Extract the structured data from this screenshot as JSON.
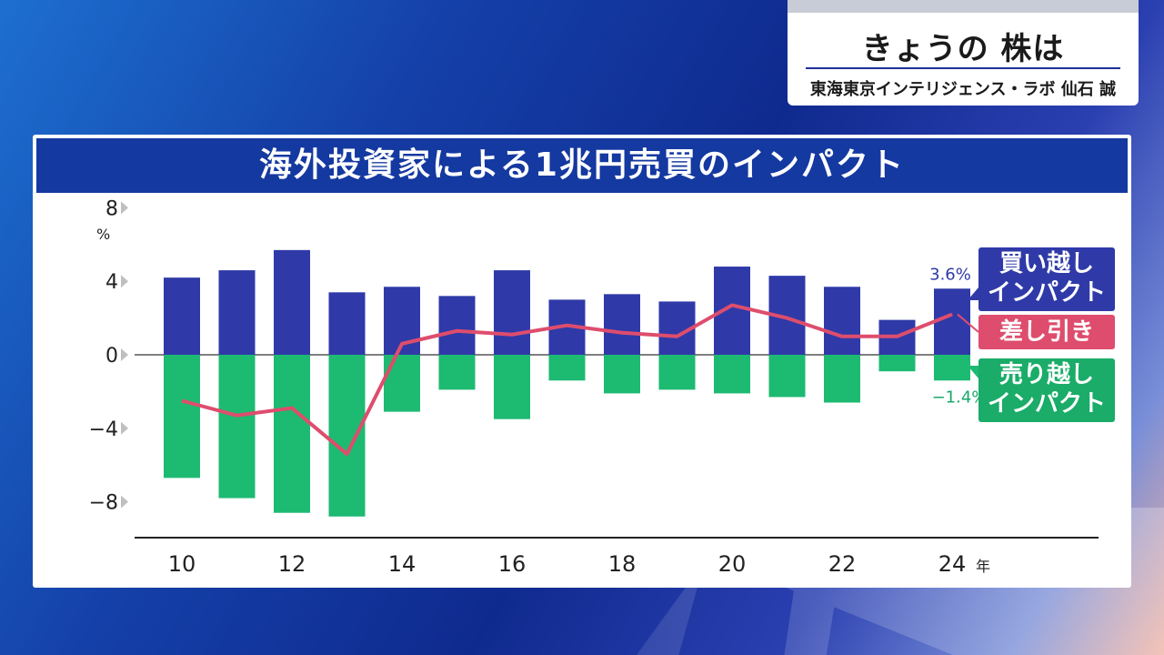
{
  "header_card": {
    "title": "きょうの 株は",
    "presenter": "東海東京インテリジェンス・ラボ 仙石 誠"
  },
  "panel": {
    "title": "海外投資家による1兆円売買のインパクト"
  },
  "legend": {
    "buy": [
      "買い越し",
      "インパクト"
    ],
    "diff": "差し引き",
    "sell": [
      "売り越し",
      "インパクト"
    ]
  },
  "colors": {
    "buy": "#2f3aa8",
    "sell": "#1dba72",
    "diff": "#de4d6d",
    "header": "#1439a0"
  },
  "chart_data": {
    "type": "bar",
    "title": "海外投資家による1兆円売買のインパクト",
    "ylabel": "%",
    "xlabel": "",
    "x_unit": "年",
    "ylim": [
      -9.5,
      8
    ],
    "y_ticks": [
      8,
      4,
      0,
      -4,
      -8
    ],
    "y_tick_labels": [
      "8",
      "4",
      "0",
      "−4",
      "−8"
    ],
    "x_tick_labels": [
      "10",
      "12",
      "14",
      "16",
      "18",
      "20",
      "22",
      "24"
    ],
    "categories": [
      "10",
      "11",
      "12",
      "13",
      "14",
      "15",
      "16",
      "17",
      "18",
      "19",
      "20",
      "21",
      "22",
      "23",
      "24"
    ],
    "series": [
      {
        "name": "買い越しインパクト",
        "type": "bar",
        "values": [
          4.2,
          4.6,
          5.7,
          3.4,
          3.7,
          3.2,
          4.6,
          3.0,
          3.3,
          2.9,
          4.8,
          4.3,
          3.7,
          1.9,
          3.6
        ]
      },
      {
        "name": "売り越しインパクト",
        "type": "bar",
        "values": [
          -6.7,
          -7.8,
          -8.6,
          -8.8,
          -3.1,
          -1.9,
          -3.5,
          -1.4,
          -2.1,
          -1.9,
          -2.1,
          -2.3,
          -2.6,
          -0.9,
          -1.4
        ]
      },
      {
        "name": "差し引き",
        "type": "line",
        "values": [
          -2.5,
          -3.3,
          -2.9,
          -5.4,
          0.6,
          1.3,
          1.1,
          1.6,
          1.2,
          1.0,
          2.7,
          2.0,
          1.0,
          1.0,
          2.2
        ]
      }
    ],
    "data_labels": {
      "buy_last": "3.6%",
      "sell_last": "−1.4%"
    },
    "grid": false,
    "legend_position": "right"
  }
}
